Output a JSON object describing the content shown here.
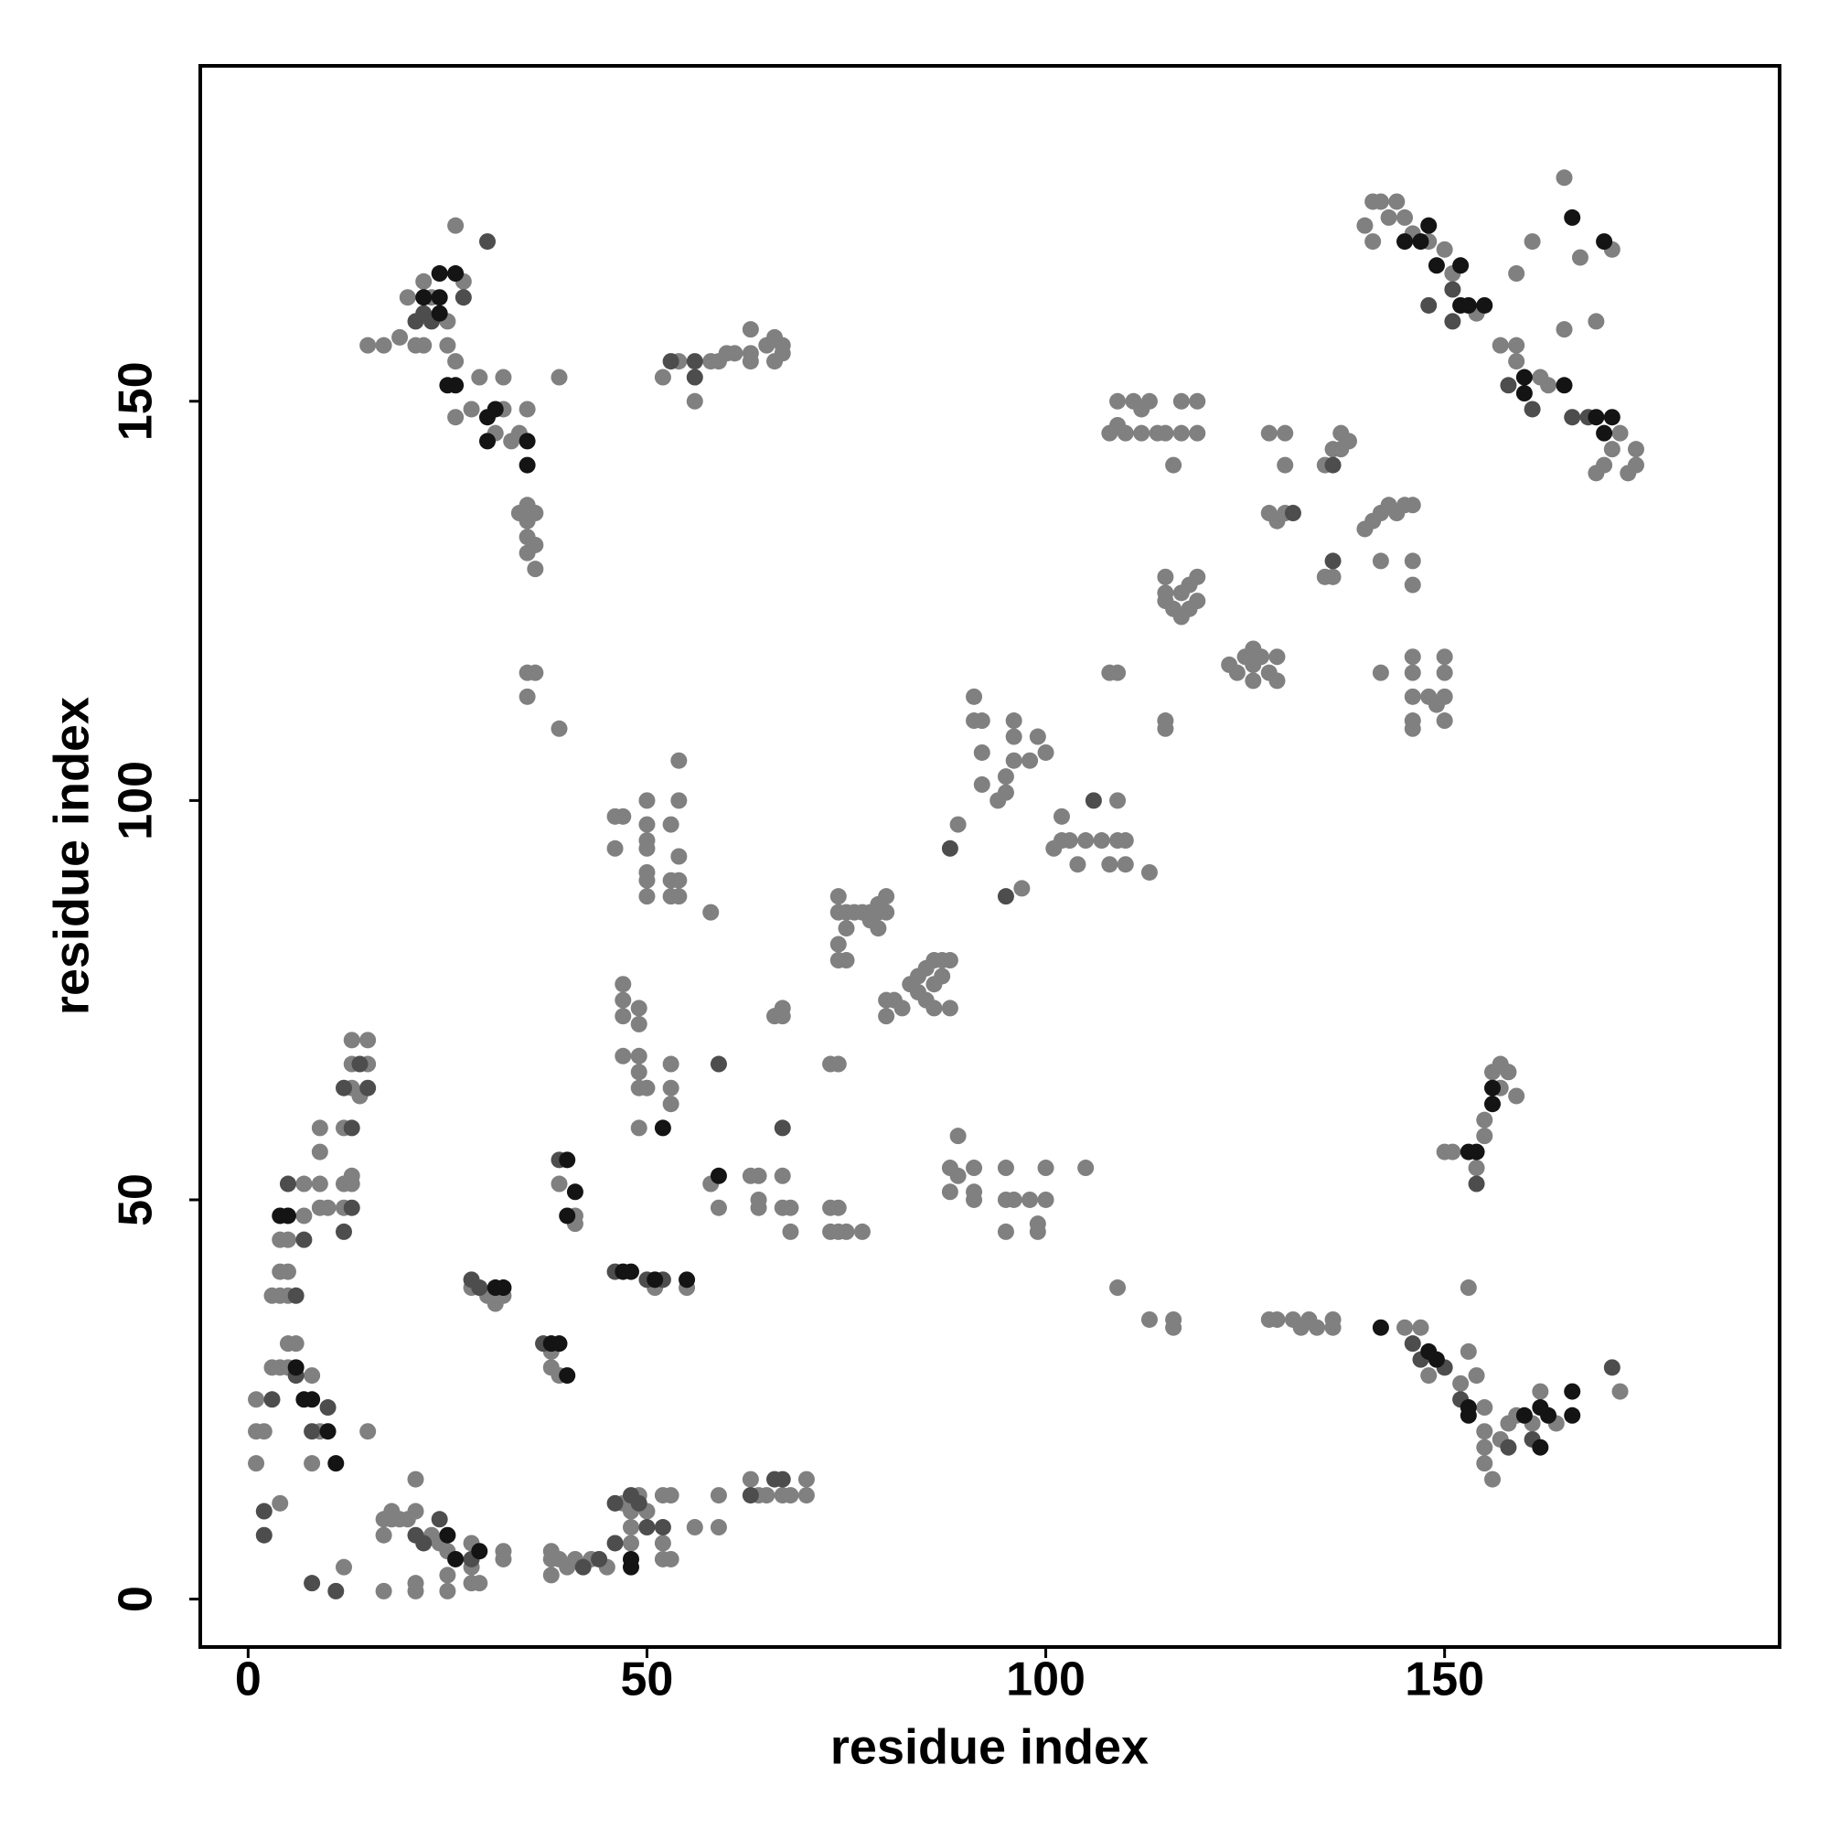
{
  "chart_data": {
    "type": "scatter",
    "x_label": "residue index",
    "y_label": "residue index",
    "xlim": [
      -6,
      192
    ],
    "ylim": [
      -6,
      192
    ],
    "xticks": [
      0,
      50,
      100,
      150
    ],
    "yticks": [
      0,
      50,
      100,
      150
    ],
    "grid": false,
    "series": [
      {
        "color": "#808080",
        "x": [
          1,
          1,
          2,
          1,
          3,
          4,
          5,
          5,
          6,
          9,
          8,
          8,
          3,
          4,
          5,
          4,
          5,
          4,
          5,
          7,
          7,
          9,
          9,
          10,
          9,
          9,
          12,
          12,
          13,
          13,
          12,
          13,
          13,
          13,
          15,
          15,
          14,
          12,
          15,
          4,
          17,
          18,
          18,
          17,
          19,
          20,
          21,
          21,
          23,
          24,
          25,
          28,
          28,
          29,
          17,
          21,
          21,
          25,
          25,
          28,
          32,
          32,
          38,
          38,
          38,
          39,
          40,
          41,
          43,
          45,
          47,
          48,
          48,
          48,
          49,
          50,
          52,
          53,
          52,
          53,
          52,
          56,
          59,
          59,
          63,
          64,
          65,
          67,
          70,
          70,
          68,
          28,
          30,
          31,
          32,
          38,
          39,
          38,
          39,
          41,
          41,
          55,
          51,
          47,
          47,
          47,
          47,
          49,
          49,
          49,
          49,
          49,
          50,
          49,
          53,
          53,
          53,
          46,
          47,
          46,
          50,
          50,
          50,
          50,
          50,
          50,
          50,
          53,
          54,
          54,
          53,
          54,
          53,
          54,
          54,
          58,
          58,
          59,
          63,
          64,
          64,
          64,
          67,
          67,
          68,
          68,
          66,
          67,
          67,
          73,
          74,
          73,
          74,
          73,
          74,
          75,
          77,
          74,
          74,
          75,
          75,
          76,
          77,
          78,
          78,
          79,
          79,
          80,
          80,
          79,
          74,
          75,
          74,
          80,
          80,
          81,
          82,
          83,
          84,
          84,
          85,
          85,
          86,
          86,
          87,
          87,
          88,
          88,
          86,
          89,
          89,
          91,
          91,
          92,
          92,
          92,
          94,
          95,
          95,
          96,
          96,
          96,
          97,
          98,
          99,
          100,
          101,
          102,
          102,
          103,
          104,
          105,
          107,
          108,
          109,
          109,
          110,
          110,
          113,
          88,
          88,
          89,
          91,
          91,
          91,
          95,
          95,
          96,
          95,
          98,
          99,
          99,
          100,
          100,
          105,
          109,
          113,
          116,
          116,
          128,
          129,
          131,
          132,
          133,
          134,
          136,
          136,
          108,
          109,
          115,
          115,
          108,
          109,
          109,
          110,
          111,
          112,
          112,
          113,
          114,
          115,
          116,
          117,
          117,
          119,
          119,
          115,
          115,
          115,
          116,
          117,
          118,
          117,
          119,
          119,
          118,
          123,
          124,
          125,
          126,
          126,
          127,
          128,
          129,
          129,
          126,
          128,
          130,
          128,
          129,
          130,
          130,
          135,
          136,
          137,
          138,
          135,
          136,
          137,
          140,
          141,
          142,
          143,
          144,
          145,
          146,
          142,
          146,
          146,
          142,
          146,
          146,
          146,
          146,
          146,
          150,
          150,
          150,
          150,
          148,
          149,
          141,
          140,
          141,
          142,
          143,
          144,
          145,
          146,
          148,
          150,
          151,
          154,
          159,
          157,
          159,
          162,
          163,
          169,
          170,
          171,
          172,
          173,
          174,
          174,
          159,
          161,
          165,
          167,
          169,
          171,
          165,
          150,
          151,
          154,
          155,
          155,
          157,
          158,
          159,
          157,
          153,
          156,
          145,
          147,
          148,
          152,
          153,
          154,
          155,
          155,
          155,
          155,
          156,
          157,
          158,
          159,
          161,
          162,
          164,
          172,
          15,
          17,
          19,
          20,
          21,
          22,
          22,
          23,
          25,
          25,
          26,
          27,
          26,
          26,
          28,
          29,
          31,
          32,
          32,
          33,
          34,
          35,
          34,
          35,
          35,
          35,
          36,
          36,
          35,
          36,
          35,
          36,
          35,
          39,
          39,
          52,
          54,
          56,
          58,
          59,
          60,
          61,
          63,
          63,
          63,
          65,
          66,
          67,
          67,
          66
        ],
        "values": [
          17,
          21,
          21,
          25,
          29,
          29,
          29,
          32,
          32,
          21,
          17,
          28,
          38,
          38,
          38,
          41,
          41,
          45,
          45,
          48,
          52,
          52,
          49,
          49,
          56,
          59,
          49,
          52,
          52,
          53,
          59,
          64,
          67,
          70,
          70,
          67,
          63,
          4,
          21,
          12,
          10,
          10,
          11,
          8,
          10,
          10,
          11,
          15,
          8,
          7,
          6,
          7,
          4,
          2,
          1,
          1,
          2,
          1,
          3,
          2,
          6,
          5,
          6,
          5,
          3,
          5,
          4,
          5,
          5,
          4,
          12,
          11,
          9,
          7,
          13,
          11,
          5,
          5,
          7,
          13,
          13,
          9,
          13,
          9,
          15,
          13,
          13,
          13,
          15,
          13,
          13,
          39,
          38,
          37,
          38,
          29,
          28,
          31,
          52,
          48,
          47,
          39,
          39,
          77,
          75,
          73,
          68,
          74,
          72,
          68,
          66,
          64,
          64,
          59,
          67,
          64,
          62,
          98,
          98,
          94,
          100,
          97,
          95,
          94,
          91,
          90,
          88,
          97,
          93,
          90,
          90,
          88,
          88,
          100,
          105,
          86,
          52,
          49,
          53,
          53,
          50,
          49,
          53,
          49,
          49,
          46,
          73,
          73,
          74,
          67,
          67,
          49,
          49,
          46,
          46,
          46,
          46,
          88,
          86,
          86,
          84,
          86,
          86,
          86,
          85,
          86,
          87,
          88,
          86,
          84,
          80,
          80,
          82,
          73,
          75,
          75,
          74,
          77,
          78,
          76,
          79,
          75,
          74,
          77,
          78,
          80,
          80,
          74,
          80,
          58,
          97,
          113,
          110,
          110,
          106,
          102,
          100,
          101,
          103,
          105,
          108,
          110,
          89,
          105,
          108,
          106,
          94,
          95,
          98,
          95,
          92,
          95,
          95,
          92,
          100,
          95,
          95,
          92,
          91,
          54,
          51,
          53,
          54,
          51,
          50,
          54,
          50,
          50,
          46,
          50,
          47,
          46,
          50,
          54,
          54,
          39,
          35,
          35,
          34,
          35,
          35,
          35,
          34,
          35,
          34,
          35,
          34,
          116,
          116,
          110,
          109,
          146,
          150,
          147,
          146,
          150,
          146,
          149,
          150,
          146,
          146,
          142,
          150,
          146,
          146,
          150,
          128,
          126,
          125,
          124,
          123,
          124,
          126,
          128,
          125,
          127,
          117,
          116,
          118,
          117,
          115,
          118,
          116,
          115,
          118,
          119,
          146,
          146,
          136,
          135,
          136,
          142,
          142,
          144,
          146,
          145,
          128,
          128,
          144,
          134,
          135,
          136,
          137,
          136,
          137,
          137,
          130,
          130,
          127,
          116,
          118,
          116,
          113,
          110,
          109,
          118,
          116,
          113,
          110,
          113,
          112,
          175,
          172,
          170,
          175,
          173,
          175,
          173,
          171,
          170,
          169,
          166,
          161,
          157,
          157,
          155,
          153,
          152,
          141,
          142,
          144,
          146,
          141,
          142,
          144,
          166,
          170,
          178,
          168,
          160,
          169,
          159,
          56,
          56,
          54,
          58,
          60,
          67,
          66,
          63,
          64,
          39,
          66,
          34,
          34,
          28,
          27,
          31,
          28,
          24,
          21,
          19,
          17,
          15,
          20,
          22,
          23,
          22,
          26,
          22,
          26,
          157,
          157,
          158,
          163,
          157,
          157,
          165,
          163,
          160,
          157,
          155,
          165,
          172,
          148,
          149,
          153,
          146,
          149,
          153,
          145,
          146,
          149,
          136,
          137,
          133,
          131,
          132,
          129,
          135,
          136,
          116,
          116,
          113,
          109,
          153,
          153,
          155,
          150,
          155,
          155,
          156,
          156,
          156,
          155,
          159,
          157,
          158,
          156,
          157,
          155
        ]
      },
      {
        "color": "#4d4d4d",
        "x": [
          2,
          2,
          3,
          6,
          8,
          10,
          6,
          7,
          12,
          13,
          14,
          15,
          13,
          11,
          8,
          21,
          22,
          24,
          28,
          46,
          48,
          50,
          63,
          67,
          66,
          59,
          67,
          95,
          88,
          106,
          131,
          136,
          136,
          21,
          22,
          23,
          30,
          27,
          53,
          56,
          56,
          161,
          166,
          168,
          151,
          151,
          148,
          158,
          154,
          146,
          147,
          150,
          152,
          171,
          158,
          161,
          28,
          29,
          37,
          39,
          46,
          50,
          52,
          46,
          49,
          52,
          44,
          42,
          12,
          5
        ],
        "values": [
          8,
          11,
          25,
          28,
          21,
          24,
          38,
          45,
          46,
          49,
          67,
          64,
          59,
          1,
          2,
          8,
          7,
          10,
          5,
          12,
          13,
          9,
          13,
          15,
          15,
          67,
          59,
          88,
          94,
          100,
          136,
          130,
          142,
          160,
          161,
          160,
          170,
          163,
          155,
          153,
          155,
          149,
          148,
          148,
          164,
          160,
          162,
          152,
          52,
          32,
          30,
          29,
          25,
          29,
          19,
          20,
          40,
          39,
          32,
          55,
          41,
          40,
          40,
          7,
          12,
          9,
          5,
          4,
          64,
          52
        ]
      },
      {
        "color": "#141414",
        "x": [
          24,
          26,
          22,
          24,
          24,
          26,
          25,
          30,
          31,
          30,
          35,
          35,
          31,
          32,
          38,
          39,
          40,
          40,
          41,
          40,
          47,
          48,
          51,
          55,
          48,
          48,
          25,
          26,
          29,
          7,
          8,
          6,
          5,
          4,
          10,
          11,
          166,
          170,
          145,
          147,
          148,
          149,
          152,
          152,
          153,
          155,
          160,
          160,
          165,
          169,
          170,
          171,
          153,
          154,
          156,
          156,
          148,
          149,
          153,
          153,
          160,
          162,
          163,
          166,
          166,
          162,
          142,
          59,
          52
        ],
        "values": [
          166,
          166,
          163,
          163,
          161,
          152,
          152,
          148,
          149,
          145,
          145,
          142,
          39,
          39,
          32,
          32,
          28,
          55,
          51,
          48,
          41,
          41,
          40,
          40,
          4,
          5,
          8,
          5,
          6,
          25,
          25,
          29,
          48,
          48,
          21,
          17,
          173,
          170,
          170,
          170,
          172,
          167,
          167,
          162,
          162,
          162,
          153,
          151,
          152,
          148,
          146,
          148,
          56,
          56,
          64,
          62,
          31,
          30,
          23,
          24,
          23,
          24,
          23,
          26,
          23,
          19,
          34,
          53,
          59
        ]
      }
    ]
  }
}
